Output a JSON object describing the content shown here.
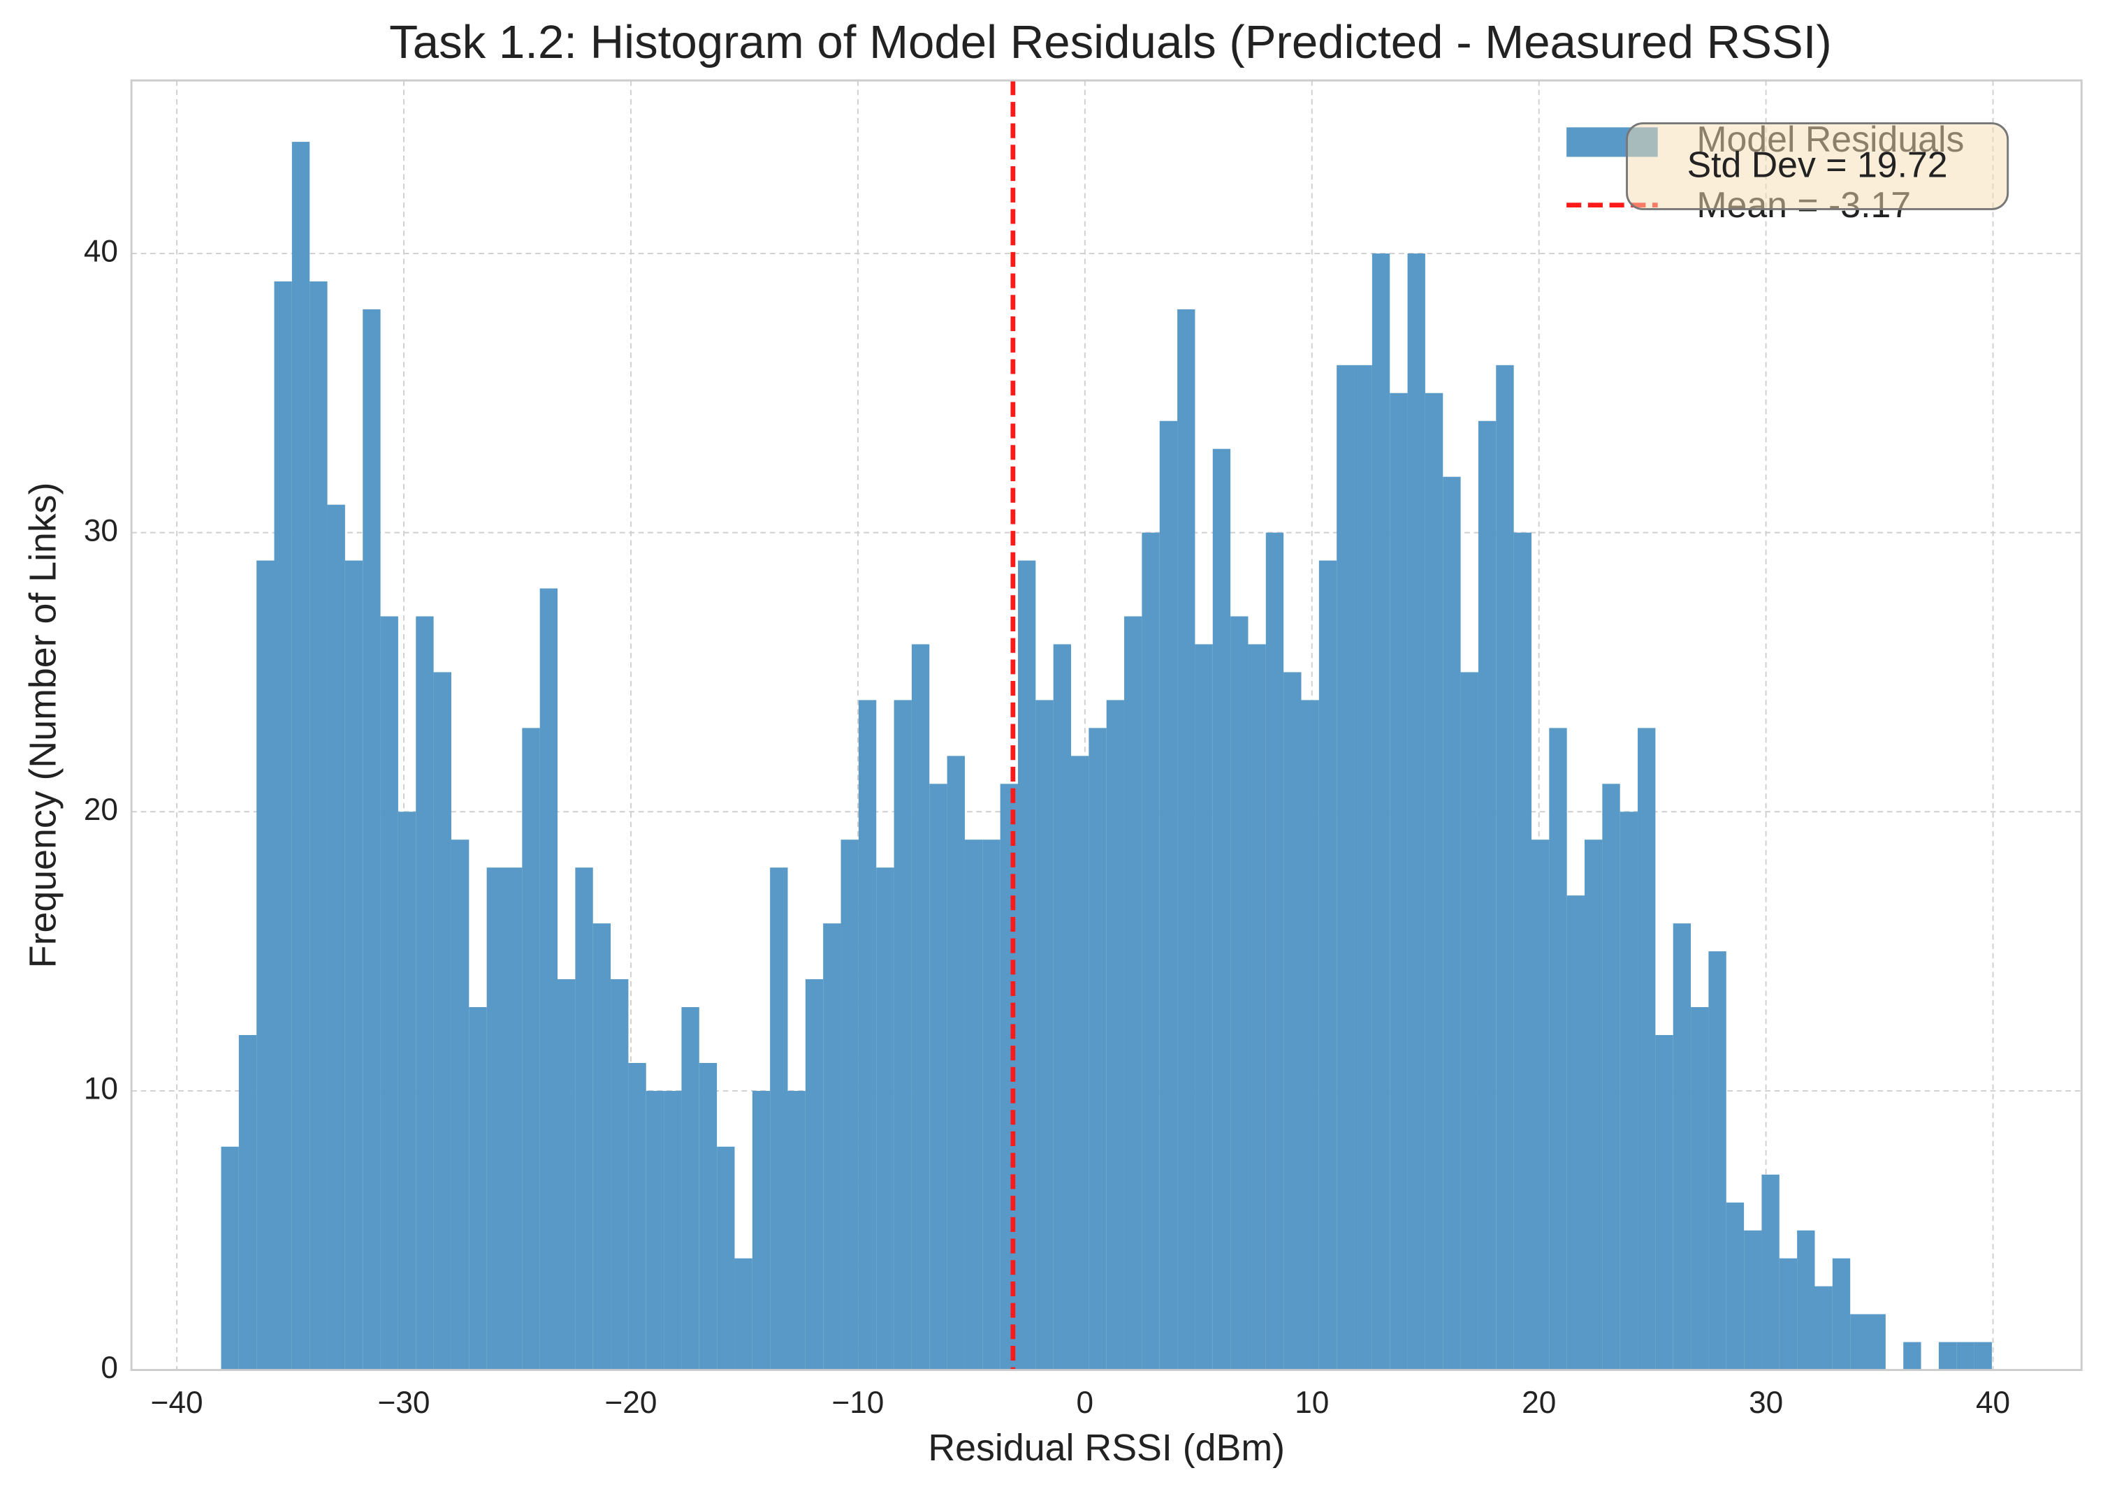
{
  "chart_data": {
    "type": "histogram",
    "title": "Task 1.2: Histogram of Model Residuals (Predicted - Measured RSSI)",
    "x_label": "Residual RSSI (dBm)",
    "y_label": "Frequency (Number of Links)",
    "bins": [
      -38.05,
      -37.27,
      -36.49,
      -35.71,
      -34.93,
      -34.15,
      -33.37,
      -32.59,
      -31.81,
      -31.03,
      -30.25,
      -29.47,
      -28.69,
      -27.91,
      -27.13,
      -26.35,
      -25.57,
      -24.79,
      -24.01,
      -23.23,
      -22.45,
      -21.67,
      -20.89,
      -20.11,
      -19.33,
      -18.55,
      -17.77,
      -16.99,
      -16.21,
      -15.43,
      -14.65,
      -13.87,
      -13.09,
      -12.31,
      -11.53,
      -10.75,
      -9.97,
      -9.19,
      -8.41,
      -7.63,
      -6.85,
      -6.07,
      -5.29,
      -4.51,
      -3.73,
      -2.95,
      -2.17,
      -1.39,
      -0.61,
      0.17,
      0.95,
      1.73,
      2.51,
      3.29,
      4.07,
      4.85,
      5.63,
      6.41,
      7.19,
      7.97,
      8.75,
      9.53,
      10.31,
      11.09,
      11.87,
      12.65,
      13.43,
      14.21,
      14.99,
      15.77,
      16.55,
      17.33,
      18.11,
      18.89,
      19.67,
      20.45,
      21.23,
      22.01,
      22.79,
      23.57,
      24.35,
      25.13,
      25.91,
      26.69,
      27.47,
      28.25,
      29.03,
      29.81,
      30.59,
      31.37,
      32.15,
      32.93,
      33.71,
      34.49,
      35.27,
      36.05,
      36.83,
      37.61,
      38.39,
      39.17,
      39.95
    ],
    "series": [
      {
        "name": "Model Residuals",
        "color": "#5899c7",
        "values": [
          8,
          12,
          29,
          39,
          44,
          39,
          31,
          29,
          38,
          27,
          20,
          27,
          25,
          19,
          13,
          18,
          18,
          23,
          28,
          14,
          18,
          16,
          14,
          11,
          10,
          10,
          13,
          11,
          8,
          4,
          10,
          18,
          10,
          14,
          16,
          19,
          24,
          18,
          24,
          26,
          21,
          22,
          19,
          19,
          21,
          29,
          24,
          26,
          22,
          23,
          24,
          27,
          30,
          34,
          38,
          26,
          33,
          27,
          26,
          30,
          25,
          24,
          29,
          36,
          36,
          40,
          35,
          40,
          35,
          32,
          25,
          34,
          36,
          30,
          19,
          23,
          17,
          19,
          21,
          20,
          23,
          12,
          16,
          13,
          15,
          6,
          5,
          7,
          4,
          5,
          3,
          4,
          2,
          2,
          0,
          1,
          0,
          1,
          1,
          1
        ]
      }
    ],
    "vlines": [
      {
        "name": "Mean = -3.17",
        "value": -3.17,
        "color": "#ff1a1a"
      }
    ],
    "annotation": "Std Dev = 19.72",
    "xlim": [
      -42,
      43.9
    ],
    "ylim": [
      0,
      46.2
    ],
    "xticks": [
      {
        "value": -40,
        "label": "−40"
      },
      {
        "value": -30,
        "label": "−30"
      },
      {
        "value": -20,
        "label": "−20"
      },
      {
        "value": -10,
        "label": "−10"
      },
      0,
      10,
      20,
      30,
      40
    ],
    "yticks": [
      0,
      10,
      20,
      30,
      40
    ],
    "grid": true,
    "legend": "upper right"
  }
}
